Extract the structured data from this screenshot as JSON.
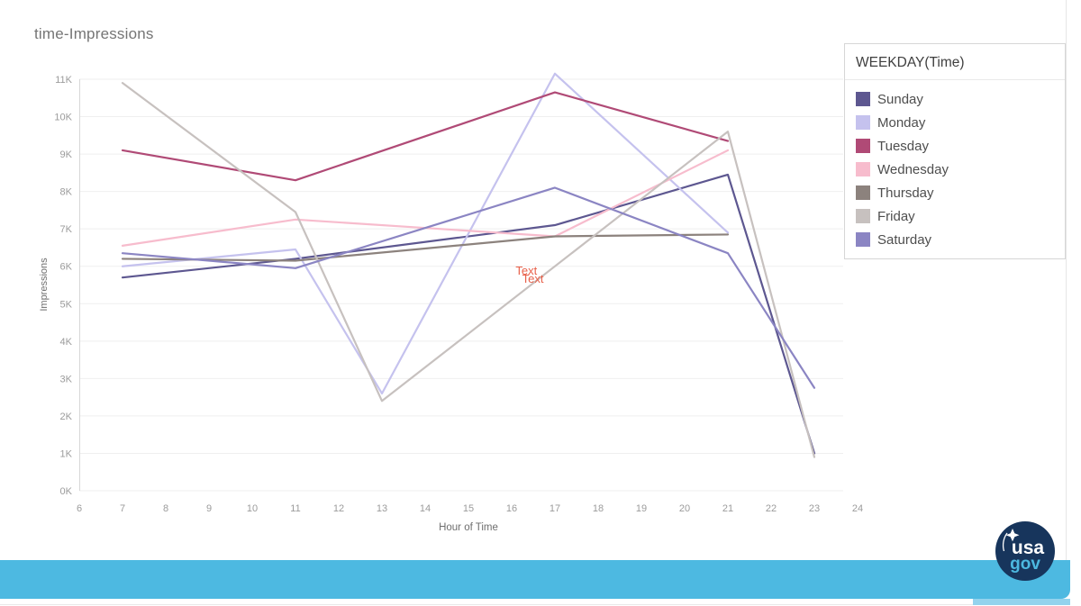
{
  "page": {
    "title": "time-Impressions"
  },
  "chart_data": {
    "type": "line",
    "title": "time-Impressions",
    "xlabel": "Hour of Time",
    "ylabel": "Impressions",
    "xlim": [
      6,
      24
    ],
    "ylim": [
      0,
      11000
    ],
    "x_ticks": [
      6,
      7,
      8,
      9,
      10,
      11,
      12,
      13,
      14,
      15,
      16,
      17,
      18,
      19,
      20,
      21,
      22,
      23,
      24
    ],
    "y_ticks": [
      "0K",
      "1K",
      "2K",
      "3K",
      "4K",
      "5K",
      "6K",
      "7K",
      "8K",
      "9K",
      "10K",
      "11K"
    ],
    "grid": "horizontal",
    "legend_position": "top-right",
    "series": [
      {
        "name": "Sunday",
        "color": "#5d5790",
        "points": [
          [
            7,
            5700
          ],
          [
            11,
            6200
          ],
          [
            17,
            7100
          ],
          [
            21,
            8450
          ],
          [
            23,
            1000
          ]
        ]
      },
      {
        "name": "Monday",
        "color": "#c5c2ee",
        "points": [
          [
            7,
            6000
          ],
          [
            11,
            6450
          ],
          [
            13,
            2600
          ],
          [
            17,
            11150
          ],
          [
            21,
            6900
          ]
        ]
      },
      {
        "name": "Tuesday",
        "color": "#b04a76",
        "points": [
          [
            7,
            9100
          ],
          [
            11,
            8300
          ],
          [
            17,
            10650
          ],
          [
            21,
            9350
          ]
        ]
      },
      {
        "name": "Wednesday",
        "color": "#f7bccd",
        "points": [
          [
            7,
            6550
          ],
          [
            11,
            7250
          ],
          [
            17,
            6800
          ],
          [
            21,
            9100
          ]
        ]
      },
      {
        "name": "Thursday",
        "color": "#8c827d",
        "points": [
          [
            7,
            6200
          ],
          [
            11,
            6150
          ],
          [
            17,
            6800
          ],
          [
            21,
            6850
          ]
        ]
      },
      {
        "name": "Friday",
        "color": "#c7c1bf",
        "points": [
          [
            7,
            10900
          ],
          [
            11,
            7450
          ],
          [
            13,
            2400
          ],
          [
            21,
            9600
          ],
          [
            23,
            900
          ]
        ]
      },
      {
        "name": "Saturday",
        "color": "#8b85c3",
        "points": [
          [
            7,
            6350
          ],
          [
            11,
            5950
          ],
          [
            17,
            8100
          ],
          [
            21,
            6350
          ],
          [
            23,
            2750
          ]
        ]
      }
    ],
    "annotations": [
      {
        "text": "Text",
        "x": 16.3,
        "y": 5900
      },
      {
        "text": "Text",
        "x": 16.45,
        "y": 5680
      }
    ]
  },
  "legend": {
    "title": "WEEKDAY(Time)",
    "items": [
      {
        "label": "Sunday",
        "color": "#5d5790"
      },
      {
        "label": "Monday",
        "color": "#c5c2ee"
      },
      {
        "label": "Tuesday",
        "color": "#b04a76"
      },
      {
        "label": "Wednesday",
        "color": "#f7bccd"
      },
      {
        "label": "Thursday",
        "color": "#8c827d"
      },
      {
        "label": "Friday",
        "color": "#c7c1bf"
      },
      {
        "label": "Saturday",
        "color": "#8b85c3"
      }
    ]
  },
  "footer": {
    "bar_color": "#4db9e1",
    "substrip_color": "#93d3ed",
    "logo": {
      "text_top": "usa",
      "text_bottom": "gov",
      "bg_color": "#17355c",
      "accent_color": "#4cb8e0"
    }
  },
  "colors": {
    "grid": "#efefef",
    "axis_line": "#d7d7d7",
    "tick_label": "#9b9b9b",
    "axis_title": "#6e6e6e",
    "annotation": "#e8604a",
    "title": "#757575"
  }
}
